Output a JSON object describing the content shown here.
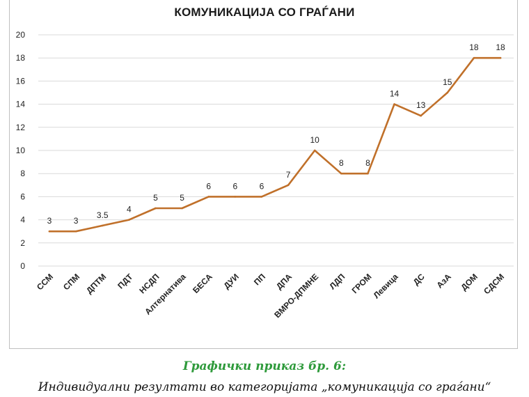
{
  "chart_data": {
    "type": "line",
    "title": "КОМУНИКАЦИЈА СО ГРАЃАНИ",
    "categories": [
      "ССМ",
      "СПМ",
      "ДПТМ",
      "ПДТ",
      "НСДП",
      "Алтернатива",
      "БЕСА",
      "ДУИ",
      "ПП",
      "ДПА",
      "ВМРО-ДПМНЕ",
      "ЛДП",
      "ГРОМ",
      "Левица",
      "ДС",
      "АзА",
      "ДОМ",
      "СДСМ"
    ],
    "series": [
      {
        "values": [
          3,
          3,
          3.5,
          4,
          5,
          5,
          6,
          6,
          6,
          7,
          10,
          8,
          8,
          14,
          13,
          15,
          18,
          18
        ]
      }
    ],
    "data_labels": [
      "3",
      "3",
      "3.5",
      "4",
      "5",
      "5",
      "6",
      "6",
      "6",
      "7",
      "10",
      "8",
      "8",
      "14",
      "13",
      "15",
      "18",
      "18"
    ],
    "ylim": [
      0,
      20
    ],
    "yticks": [
      "0",
      "2",
      "4",
      "6",
      "8",
      "10",
      "12",
      "14",
      "16",
      "18",
      "20"
    ],
    "grid": true,
    "xlabel": "",
    "ylabel": "",
    "line_color": "#c0702a",
    "grid_color": "#d9d9d9"
  },
  "caption": {
    "title": "Графички приказ бр. 6:",
    "text": "Индивидуални  резултати во категоријата „комуникација со граѓани“"
  }
}
